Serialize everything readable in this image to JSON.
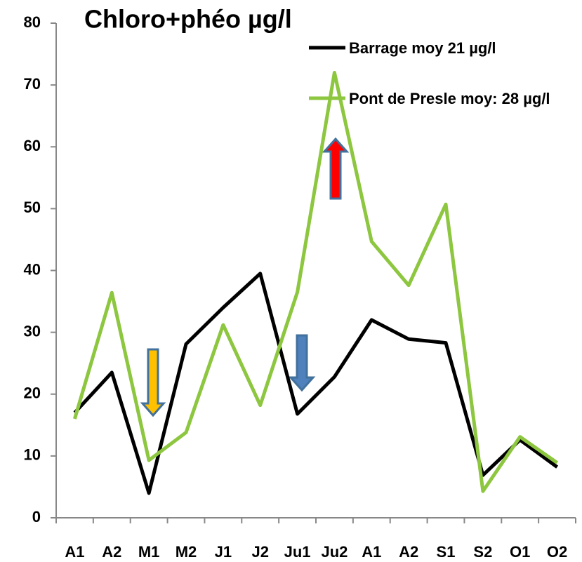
{
  "chart_data": {
    "type": "line",
    "title": "Chloro+phéo µg/l",
    "categories": [
      "A1",
      "A2",
      "M1",
      "M2",
      "J1",
      "J2",
      "Ju1",
      "Ju2",
      "A1",
      "A2",
      "S1",
      "S2",
      "O1",
      "O2"
    ],
    "series": [
      {
        "name": "Barrage moy 21 µg/l",
        "color": "#000000",
        "values": [
          17.0,
          23.5,
          4.0,
          28.1,
          34.0,
          39.5,
          16.8,
          22.8,
          32.0,
          28.9,
          28.3,
          6.9,
          12.6,
          8.2
        ]
      },
      {
        "name": "Pont de Presle moy: 28 µg/l",
        "color": "#8dc63f",
        "values": [
          16.0,
          36.4,
          9.3,
          13.8,
          31.2,
          18.2,
          36.5,
          72.0,
          44.7,
          37.6,
          50.7,
          4.3,
          13.1,
          8.9
        ]
      }
    ],
    "ylim": [
      0,
      80
    ],
    "yticks": [
      0,
      10,
      20,
      30,
      40,
      50,
      60,
      70,
      80
    ],
    "grid": false
  }
}
